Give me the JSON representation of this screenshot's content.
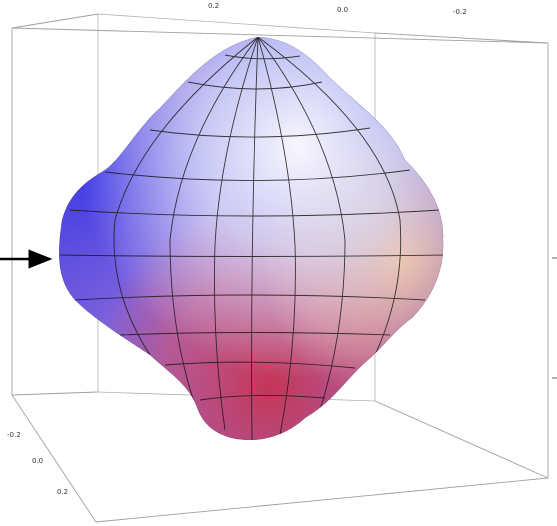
{
  "axes": {
    "top_ticks": [
      "0.2",
      "0.0",
      "-0.2"
    ],
    "left_ticks": [
      "-0.2",
      "0.0",
      "0.2"
    ]
  },
  "colors": {
    "box_edge": "#a0a0a0",
    "mesh_line": "#1a1a1a",
    "arrow": "#000000",
    "surface_blue": "#4a45e0",
    "surface_violet": "#8a5ad8",
    "surface_light": "#e8f2ff",
    "surface_orange": "#f2a070",
    "surface_red": "#cf3f55"
  },
  "arrow": {
    "icon": "right-arrow-icon"
  }
}
